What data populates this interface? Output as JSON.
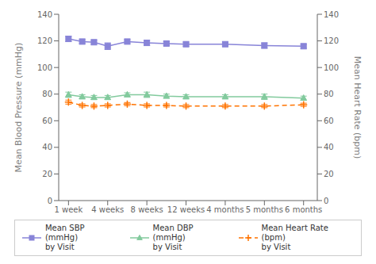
{
  "chart_data": {
    "type": "line",
    "x": [
      0,
      0.35,
      0.65,
      1.0,
      1.5,
      2.0,
      2.5,
      3.0,
      4.0,
      5.0,
      6.0
    ],
    "xlim": [
      -0.25,
      6.35
    ],
    "xticks": [
      {
        "value": 0,
        "label": "1 week"
      },
      {
        "value": 1,
        "label": "4 weeks"
      },
      {
        "value": 2,
        "label": "8 weeks"
      },
      {
        "value": 3,
        "label": "12 weeks"
      },
      {
        "value": 4,
        "label": "4 months"
      },
      {
        "value": 5,
        "label": "5 months"
      },
      {
        "value": 6,
        "label": "6 months"
      }
    ],
    "ylim": [
      0,
      140
    ],
    "yticks": [
      0,
      20,
      40,
      60,
      80,
      100,
      120,
      140
    ],
    "y2lim": [
      0,
      140
    ],
    "y2ticks": [
      0,
      20,
      40,
      60,
      80,
      100,
      120,
      140
    ],
    "ylabel": "Mean Blood Pressure (mmHg)",
    "y2label": "Mean Heart Rate (bpm)",
    "grid": false,
    "legend": "bottom",
    "series": [
      {
        "name": "Mean SBP (mmHg)\nby Visit",
        "marker": "square",
        "line_style": "solid",
        "values": [
          121.5,
          119.5,
          119.0,
          116.0,
          119.5,
          118.5,
          118.0,
          117.5,
          117.5,
          116.5,
          116.0
        ],
        "errors": [
          2.0,
          1.5,
          1.5,
          2.5,
          1.5,
          2.0,
          1.5,
          1.5,
          1.5,
          2.0,
          1.5
        ]
      },
      {
        "name": "Mean DBP (mmHg)\nby Visit",
        "marker": "triangle",
        "line_style": "solid",
        "values": [
          79.5,
          78.0,
          77.5,
          77.5,
          79.5,
          79.5,
          78.5,
          78.0,
          78.0,
          78.0,
          77.0
        ],
        "errors": [
          2.0,
          1.5,
          1.5,
          1.5,
          1.5,
          2.0,
          1.5,
          1.5,
          1.5,
          2.0,
          1.5
        ]
      },
      {
        "name": "Mean Heart Rate (bpm)\nby Visit",
        "marker": "plus",
        "line_style": "dashed",
        "axis": "y2",
        "values": [
          74.0,
          71.5,
          71.0,
          71.5,
          72.5,
          71.5,
          71.5,
          71.0,
          71.0,
          71.0,
          72.0
        ],
        "errors": [
          1.5,
          1.2,
          1.2,
          1.2,
          1.2,
          1.2,
          1.2,
          1.2,
          1.2,
          1.2,
          1.2
        ]
      }
    ]
  }
}
